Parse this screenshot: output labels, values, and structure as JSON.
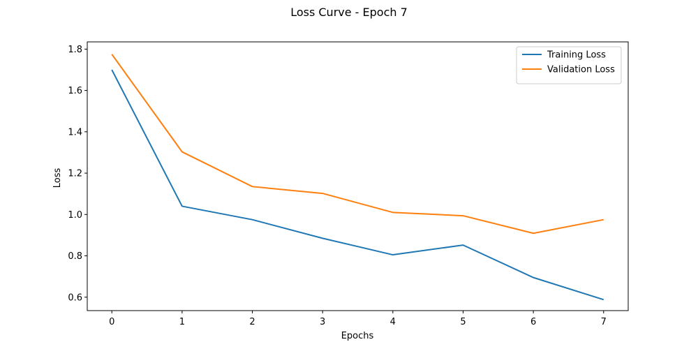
{
  "chart_data": {
    "type": "line",
    "title": "Loss Curve - Epoch 7",
    "xlabel": "Epochs",
    "ylabel": "Loss",
    "x": [
      0,
      1,
      2,
      3,
      4,
      5,
      6,
      7
    ],
    "xlim": [
      -0.35,
      7.35
    ],
    "ylim": [
      0.535,
      1.835
    ],
    "xticks": [
      0,
      1,
      2,
      3,
      4,
      5,
      6,
      7
    ],
    "xtick_labels": [
      "0",
      "1",
      "2",
      "3",
      "4",
      "5",
      "6",
      "7"
    ],
    "yticks": [
      0.6,
      0.8,
      1.0,
      1.2,
      1.4,
      1.6,
      1.8
    ],
    "ytick_labels": [
      "0.6",
      "0.8",
      "1.0",
      "1.2",
      "1.4",
      "1.6",
      "1.8"
    ],
    "grid": false,
    "legend_position": "top-right",
    "series": [
      {
        "name": "Training Loss",
        "color": "#1f77b4",
        "values": [
          1.7,
          1.04,
          0.975,
          0.885,
          0.805,
          0.852,
          0.695,
          0.588
        ]
      },
      {
        "name": "Validation Loss",
        "color": "#ff7f0e",
        "values": [
          1.775,
          1.303,
          1.135,
          1.102,
          1.01,
          0.994,
          0.909,
          0.975
        ]
      }
    ]
  }
}
